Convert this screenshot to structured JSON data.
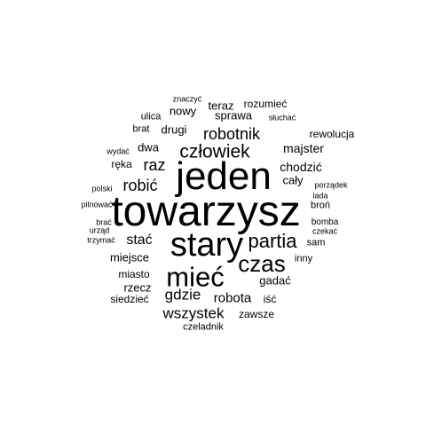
{
  "text_color": "#000000",
  "background_color": "#ffffff",
  "words": [
    {
      "text": "towarzysz",
      "weight": 1.0
    },
    {
      "text": "jeden",
      "weight": 0.92
    },
    {
      "text": "stary",
      "weight": 0.8
    },
    {
      "text": "mieć",
      "weight": 0.66
    },
    {
      "text": "czas",
      "weight": 0.55
    },
    {
      "text": "partia",
      "weight": 0.48
    },
    {
      "text": "człowiek",
      "weight": 0.46
    },
    {
      "text": "robotnik",
      "weight": 0.42
    },
    {
      "text": "robić",
      "weight": 0.42
    },
    {
      "text": "raz",
      "weight": 0.42
    },
    {
      "text": "wszystek",
      "weight": 0.4
    },
    {
      "text": "gdzie",
      "weight": 0.38
    },
    {
      "text": "stać",
      "weight": 0.36
    },
    {
      "text": "robota",
      "weight": 0.35
    },
    {
      "text": "chodzić",
      "weight": 0.32
    },
    {
      "text": "majster",
      "weight": 0.31
    },
    {
      "text": "drugi",
      "weight": 0.3
    },
    {
      "text": "dwa",
      "weight": 0.3
    },
    {
      "text": "miejsce",
      "weight": 0.3
    },
    {
      "text": "gadać",
      "weight": 0.3
    },
    {
      "text": "cały",
      "weight": 0.3
    },
    {
      "text": "nowy",
      "weight": 0.28
    },
    {
      "text": "teraz",
      "weight": 0.27
    },
    {
      "text": "sprawa",
      "weight": 0.27
    },
    {
      "text": "rzecz",
      "weight": 0.27
    },
    {
      "text": "miasto",
      "weight": 0.26
    },
    {
      "text": "rozumieć",
      "weight": 0.25
    },
    {
      "text": "ręka",
      "weight": 0.24
    },
    {
      "text": "rewolucja",
      "weight": 0.24
    },
    {
      "text": "siedzieć",
      "weight": 0.24
    },
    {
      "text": "iść",
      "weight": 0.24
    },
    {
      "text": "zawsze",
      "weight": 0.23
    },
    {
      "text": "czeladnik",
      "weight": 0.23
    },
    {
      "text": "ulica",
      "weight": 0.23
    },
    {
      "text": "brat",
      "weight": 0.23
    },
    {
      "text": "inny",
      "weight": 0.22
    },
    {
      "text": "sam",
      "weight": 0.22
    },
    {
      "text": "broń",
      "weight": 0.21
    },
    {
      "text": "bomba",
      "weight": 0.2
    },
    {
      "text": "słuchać",
      "weight": 0.19
    },
    {
      "text": "porządek",
      "weight": 0.19
    },
    {
      "text": "lada",
      "weight": 0.19
    },
    {
      "text": "czekać",
      "weight": 0.19
    },
    {
      "text": "znaczyć",
      "weight": 0.19
    },
    {
      "text": "wydać",
      "weight": 0.19
    },
    {
      "text": "polski",
      "weight": 0.19
    },
    {
      "text": "pilnować",
      "weight": 0.19
    },
    {
      "text": "brać",
      "weight": 0.19
    },
    {
      "text": "urząd",
      "weight": 0.19
    },
    {
      "text": "trzymać",
      "weight": 0.19
    }
  ]
}
